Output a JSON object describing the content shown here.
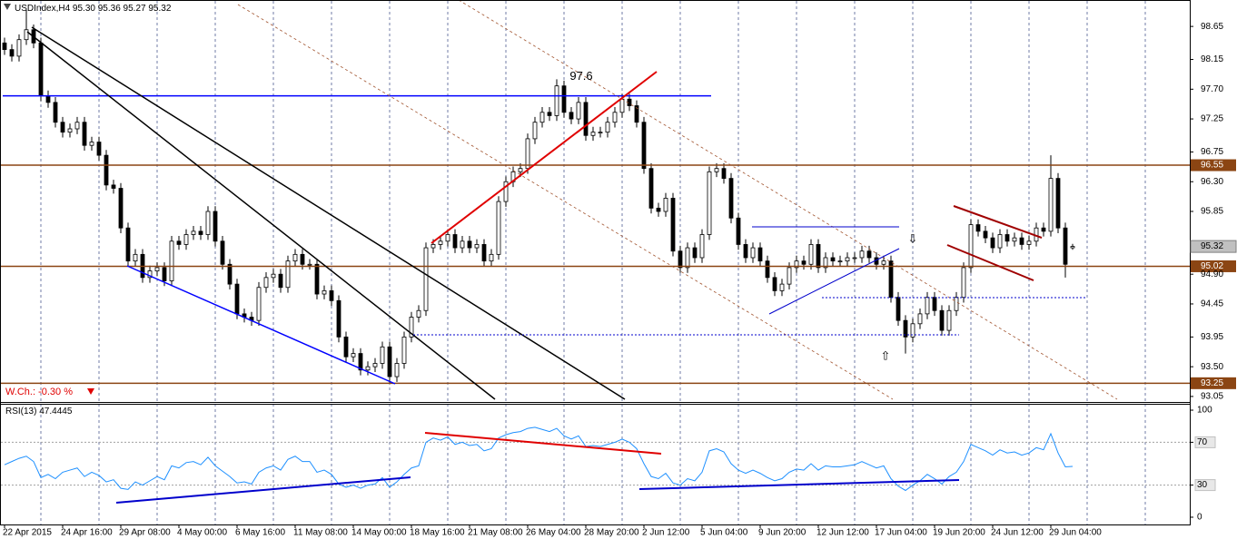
{
  "chart_data": [
    {
      "type": "candlestick",
      "title": "USDIndex,H4",
      "last_bar_text": [
        "95.30",
        "95.36",
        "95.27",
        "95.32"
      ],
      "categories": [
        "22 Apr 2015",
        null,
        null,
        null,
        null,
        null,
        null,
        null,
        "24 Apr 16:00",
        null,
        null,
        null,
        null,
        null,
        null,
        null,
        "29 Apr 08:00",
        null,
        null,
        null,
        null,
        null,
        null,
        null,
        "4 May 00:00",
        null,
        null,
        null,
        null,
        null,
        null,
        null,
        "6 May 16:00",
        null,
        null,
        null,
        null,
        null,
        null,
        null,
        "11 May 08:00",
        null,
        null,
        null,
        null,
        null,
        null,
        null,
        "14 May 00:00",
        null,
        null,
        null,
        null,
        null,
        null,
        null,
        "18 May 16:00",
        null,
        null,
        null,
        null,
        null,
        null,
        null,
        "21 May 08:00",
        null,
        null,
        null,
        null,
        null,
        null,
        null,
        "26 May 04:00",
        null,
        null,
        null,
        null,
        null,
        null,
        null,
        "28 May 20:00",
        null,
        null,
        null,
        null,
        null,
        null,
        null,
        "2 Jun 12:00",
        null,
        null,
        null,
        null,
        null,
        null,
        null,
        "5 Jun 04:00",
        null,
        null,
        null,
        null,
        null,
        null,
        null,
        "9 Jun 20:00",
        null,
        null,
        null,
        null,
        null,
        null,
        null,
        "12 Jun 12:00",
        null,
        null,
        null,
        null,
        null,
        null,
        null,
        "17 Jun 04:00",
        null,
        null,
        null,
        null,
        null,
        null,
        null,
        "19 Jun 20:00",
        null,
        null,
        null,
        null,
        null,
        null,
        null,
        "24 Jun 12:00",
        null,
        null,
        null,
        null,
        null,
        null,
        null,
        "29 Jun 04:00",
        null,
        null,
        null
      ],
      "open": [
        98.4,
        98.3,
        98.2,
        98.45,
        98.6,
        98.4,
        97.6,
        97.5,
        97.2,
        97.05,
        97.1,
        97.2,
        96.85,
        96.9,
        96.7,
        96.25,
        96.2,
        95.6,
        95.1,
        95.2,
        94.85,
        94.95,
        95.0,
        94.8,
        95.4,
        95.35,
        95.5,
        95.55,
        95.5,
        95.85,
        95.4,
        95.05,
        94.75,
        94.3,
        94.25,
        94.2,
        94.7,
        94.85,
        94.9,
        94.7,
        95.1,
        95.2,
        95.05,
        95.05,
        94.6,
        94.65,
        94.5,
        93.95,
        93.65,
        93.7,
        93.45,
        93.5,
        93.55,
        93.8,
        93.35,
        93.55,
        93.95,
        94.25,
        94.35,
        95.3,
        95.35,
        95.4,
        95.5,
        95.3,
        95.4,
        95.3,
        95.35,
        95.1,
        95.2,
        96.0,
        96.3,
        96.45,
        96.5,
        96.95,
        97.2,
        97.35,
        97.3,
        97.75,
        97.35,
        97.25,
        97.5,
        97.0,
        97.05,
        97.05,
        97.2,
        97.35,
        97.55,
        97.45,
        97.2,
        96.5,
        95.9,
        95.85,
        96.05,
        95.25,
        95.0,
        95.3,
        95.15,
        95.5,
        96.45,
        96.5,
        96.35,
        95.75,
        95.35,
        95.15,
        95.3,
        95.1,
        94.85,
        94.65,
        94.75,
        95.0,
        95.1,
        95.05,
        95.35,
        95.0,
        95.15,
        95.1,
        95.1,
        95.15,
        95.15,
        95.25,
        95.15,
        95.05,
        95.1,
        94.55,
        94.2,
        93.95,
        94.15,
        94.3,
        94.55,
        94.35,
        94.05,
        94.35,
        94.55,
        95.0,
        95.65,
        95.55,
        95.45,
        95.3,
        95.5,
        95.4,
        95.45,
        95.35,
        95.4,
        95.6,
        95.55,
        96.35,
        95.6,
        95.3
      ],
      "high": [
        98.48,
        98.38,
        98.53,
        98.9,
        98.68,
        98.48,
        97.68,
        97.58,
        97.28,
        97.18,
        97.28,
        97.28,
        96.98,
        96.98,
        96.78,
        96.33,
        96.28,
        95.68,
        95.28,
        95.28,
        95.03,
        95.08,
        95.08,
        95.48,
        95.48,
        95.58,
        95.63,
        95.63,
        95.93,
        95.93,
        95.48,
        95.13,
        94.83,
        94.38,
        94.33,
        94.78,
        94.93,
        94.98,
        94.98,
        95.18,
        95.28,
        95.28,
        95.13,
        95.13,
        94.73,
        94.73,
        94.58,
        94.03,
        93.78,
        93.78,
        93.58,
        93.63,
        93.88,
        93.88,
        93.63,
        94.03,
        94.33,
        94.43,
        95.38,
        95.43,
        95.48,
        95.58,
        95.58,
        95.48,
        95.48,
        95.43,
        95.43,
        95.28,
        96.08,
        96.38,
        96.53,
        96.58,
        97.03,
        97.28,
        97.43,
        97.43,
        97.85,
        97.83,
        97.43,
        97.58,
        97.58,
        97.13,
        97.13,
        97.28,
        97.43,
        97.63,
        97.63,
        97.53,
        97.28,
        96.58,
        95.98,
        96.13,
        96.13,
        95.33,
        95.38,
        95.38,
        95.58,
        96.53,
        96.58,
        96.58,
        96.43,
        95.83,
        95.43,
        95.38,
        95.38,
        95.18,
        94.93,
        94.83,
        95.08,
        95.18,
        95.18,
        95.43,
        95.43,
        95.23,
        95.23,
        95.18,
        95.23,
        95.23,
        95.33,
        95.33,
        95.23,
        95.18,
        95.18,
        94.63,
        94.28,
        94.23,
        94.38,
        94.63,
        94.63,
        94.43,
        94.43,
        94.63,
        95.08,
        95.73,
        95.73,
        95.63,
        95.53,
        95.58,
        95.58,
        95.53,
        95.53,
        95.48,
        95.68,
        95.68,
        96.7,
        96.43,
        95.68,
        95.36
      ],
      "low": [
        98.22,
        98.12,
        98.12,
        98.37,
        98.32,
        97.52,
        97.42,
        97.12,
        96.97,
        96.97,
        97.02,
        96.77,
        96.77,
        96.62,
        96.17,
        96.12,
        95.52,
        95.02,
        95.02,
        94.77,
        94.77,
        94.87,
        94.72,
        94.72,
        95.27,
        95.27,
        95.42,
        95.42,
        95.42,
        95.32,
        94.97,
        94.67,
        94.22,
        94.17,
        94.12,
        94.12,
        94.62,
        94.77,
        94.62,
        94.62,
        95.02,
        94.97,
        94.97,
        94.52,
        94.52,
        94.42,
        93.87,
        93.57,
        93.57,
        93.37,
        93.37,
        93.42,
        93.47,
        93.25,
        93.27,
        93.47,
        93.87,
        94.17,
        94.27,
        95.22,
        95.27,
        95.32,
        95.22,
        95.22,
        95.22,
        95.22,
        95.02,
        95.02,
        95.12,
        95.92,
        96.22,
        96.37,
        96.42,
        96.87,
        97.12,
        97.22,
        97.22,
        97.27,
        97.17,
        97.17,
        96.92,
        96.92,
        96.97,
        96.97,
        97.12,
        97.27,
        97.37,
        97.12,
        96.42,
        95.82,
        95.77,
        95.77,
        95.17,
        94.92,
        94.92,
        95.07,
        95.07,
        95.42,
        96.37,
        96.27,
        95.67,
        95.27,
        95.07,
        95.07,
        95.02,
        94.77,
        94.57,
        94.57,
        94.67,
        94.92,
        94.97,
        94.97,
        94.92,
        94.92,
        95.02,
        95.02,
        95.02,
        95.07,
        95.07,
        95.07,
        94.97,
        94.97,
        94.47,
        94.12,
        93.7,
        93.87,
        94.07,
        94.22,
        94.27,
        93.97,
        93.97,
        94.27,
        94.47,
        94.92,
        95.47,
        95.37,
        95.22,
        95.22,
        95.32,
        95.32,
        95.27,
        95.27,
        95.32,
        95.47,
        95.47,
        95.52,
        94.85,
        95.27
      ],
      "close": [
        98.3,
        98.2,
        98.45,
        98.6,
        98.4,
        97.6,
        97.5,
        97.2,
        97.05,
        97.1,
        97.2,
        96.85,
        96.9,
        96.7,
        96.25,
        96.2,
        95.6,
        95.1,
        95.2,
        94.85,
        94.95,
        95.0,
        94.8,
        95.4,
        95.35,
        95.5,
        95.55,
        95.5,
        95.85,
        95.4,
        95.05,
        94.75,
        94.3,
        94.25,
        94.2,
        94.7,
        94.85,
        94.9,
        94.7,
        95.1,
        95.2,
        95.05,
        95.05,
        94.6,
        94.65,
        94.5,
        93.95,
        93.65,
        93.7,
        93.45,
        93.5,
        93.55,
        93.8,
        93.35,
        93.55,
        93.95,
        94.25,
        94.35,
        95.3,
        95.35,
        95.4,
        95.5,
        95.3,
        95.4,
        95.3,
        95.35,
        95.1,
        95.2,
        96.0,
        96.3,
        96.45,
        96.5,
        96.95,
        97.2,
        97.35,
        97.3,
        97.75,
        97.35,
        97.25,
        97.5,
        97.0,
        97.05,
        97.05,
        97.2,
        97.35,
        97.55,
        97.45,
        97.2,
        96.5,
        95.9,
        95.85,
        96.05,
        95.25,
        95.0,
        95.3,
        95.15,
        95.5,
        96.45,
        96.5,
        96.35,
        95.75,
        95.35,
        95.15,
        95.3,
        95.1,
        94.85,
        94.65,
        94.75,
        95.0,
        95.1,
        95.05,
        95.35,
        95.0,
        95.15,
        95.1,
        95.1,
        95.15,
        95.15,
        95.25,
        95.15,
        95.05,
        95.1,
        94.55,
        94.2,
        93.95,
        94.15,
        94.3,
        94.55,
        94.35,
        94.05,
        94.35,
        94.55,
        95.0,
        95.65,
        95.55,
        95.45,
        95.3,
        95.5,
        95.4,
        95.45,
        95.35,
        95.4,
        95.6,
        95.55,
        96.35,
        95.6,
        95.05,
        95.32
      ],
      "up_color": "#ffffff",
      "down_color": "#000000",
      "ylim": [
        92.98,
        99.05
      ],
      "yticks": [
        98.65,
        98.15,
        {
          "value": 97.7,
          "label": "97.70"
        },
        97.25,
        96.75,
        {
          "value": 96.3,
          "label": "96.30"
        },
        95.85,
        {
          "value": 94.9,
          "label": "94.90"
        },
        94.45,
        93.95,
        {
          "value": 93.5,
          "label": "93.50"
        },
        93.05
      ],
      "grid": true,
      "levels": [
        {
          "value": 96.55,
          "color": "#8b4513"
        },
        {
          "value": 95.02,
          "color": "#8b4513"
        },
        {
          "value": 93.25,
          "color": "#8b4513"
        }
      ],
      "last_price": 95.32,
      "resistance": {
        "value": 97.6,
        "color": "#0000ff"
      },
      "weekly_change": "W.Ch.: -0.30 %"
    },
    {
      "type": "line",
      "title": "RSI(13)",
      "values": [
        49,
        52,
        55,
        57,
        52,
        37,
        40,
        36,
        42,
        44,
        46,
        38,
        42,
        39,
        33,
        35,
        27,
        26,
        33,
        30,
        34,
        38,
        35,
        48,
        46,
        51,
        52,
        49,
        56,
        48,
        43,
        38,
        32,
        33,
        31,
        42,
        46,
        48,
        44,
        54,
        57,
        52,
        52,
        42,
        44,
        40,
        31,
        28,
        30,
        27,
        30,
        31,
        37,
        28,
        33,
        40,
        46,
        48,
        70,
        74,
        72,
        75,
        68,
        70,
        67,
        68,
        62,
        64,
        74,
        77,
        79,
        80,
        83,
        84,
        82,
        80,
        83,
        76,
        73,
        76,
        66,
        67,
        66,
        68,
        70,
        73,
        70,
        64,
        50,
        38,
        36,
        41,
        32,
        30,
        36,
        34,
        42,
        62,
        64,
        61,
        50,
        44,
        41,
        44,
        41,
        37,
        34,
        36,
        42,
        45,
        44,
        50,
        44,
        48,
        47,
        47,
        48,
        49,
        52,
        49,
        46,
        48,
        36,
        29,
        25,
        30,
        34,
        40,
        36,
        31,
        38,
        42,
        52,
        68,
        65,
        62,
        58,
        63,
        60,
        61,
        58,
        60,
        65,
        63,
        78,
        60,
        47,
        47.4445
      ],
      "color": "#1e90ff",
      "ylim": [
        -6.8,
        105.1
      ],
      "yticks": [
        0,
        30,
        70,
        100
      ],
      "levels": [
        30,
        70
      ]
    }
  ]
}
